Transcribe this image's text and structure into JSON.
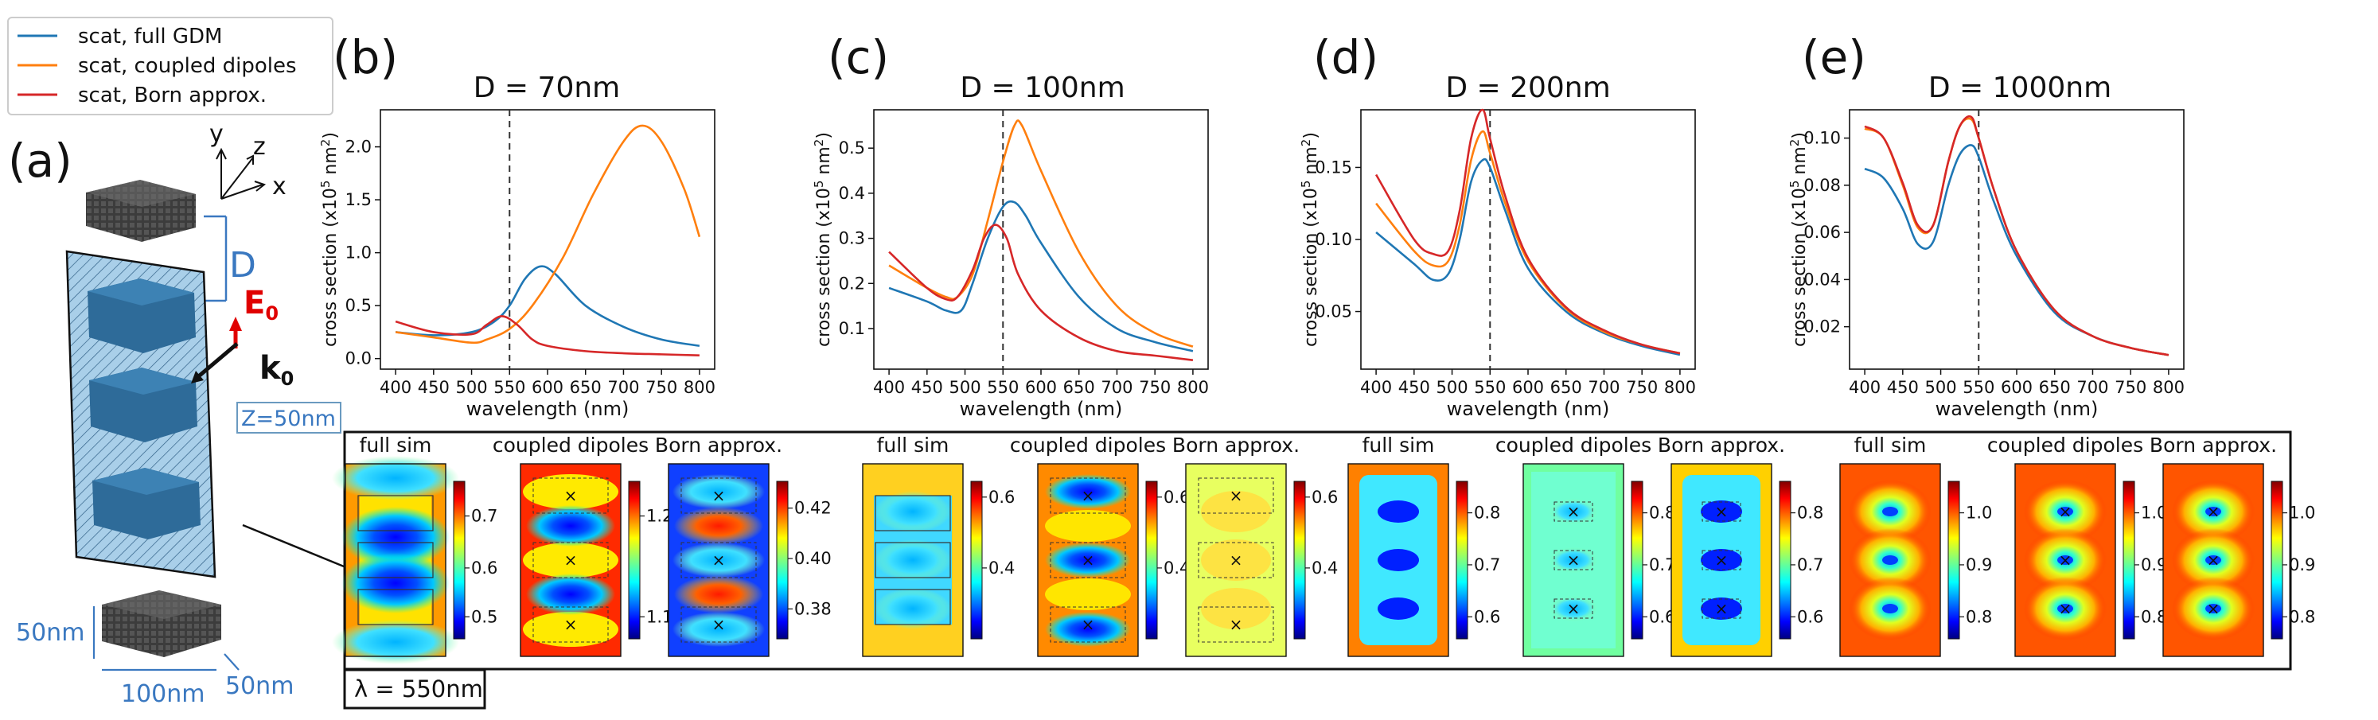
{
  "legend": {
    "entries": [
      {
        "label": "scat, full GDM",
        "color": "#1f77b4"
      },
      {
        "label": "scat, coupled dipoles",
        "color": "#ff7f0e"
      },
      {
        "label": "scat, Born approx.",
        "color": "#d62728"
      }
    ]
  },
  "schematic": {
    "panel_label": "(a)",
    "axes": {
      "x": "x",
      "y": "y",
      "z": "z"
    },
    "D_label": "D",
    "E_label": "E",
    "E_sub": "0",
    "k_label": "k",
    "k_sub": "0",
    "z_label": "Z=50nm",
    "dims": {
      "height": "50nm",
      "width": "100nm",
      "depth": "50nm"
    }
  },
  "chart_data": [
    {
      "type": "line",
      "panel": "(b)",
      "title": "D = 70nm",
      "xlabel": "wavelength (nm)",
      "ylabel_main": "cross section (x10",
      "ylabel_sup1": "5",
      "ylabel_mid": " nm",
      "ylabel_sup2": "2",
      "ylabel_end": ")",
      "xlim": [
        380,
        820
      ],
      "ylim": [
        -0.1,
        2.35
      ],
      "xticks": [
        400,
        450,
        500,
        550,
        600,
        650,
        700,
        750,
        800
      ],
      "xtick_labels": [
        "400",
        "450",
        "500",
        "550",
        "600",
        "650",
        "700",
        "750",
        "800"
      ],
      "yticks": [
        0,
        0.5,
        1.0,
        1.5,
        2.0
      ],
      "ytick_labels": [
        "0.0",
        "0.5",
        "1.0",
        "1.5",
        "2.0"
      ],
      "vline": 550,
      "series": [
        {
          "name": "scat, full GDM",
          "color": "#1f77b4",
          "x": [
            400,
            450,
            500,
            530,
            550,
            570,
            590,
            610,
            650,
            700,
            750,
            800
          ],
          "y": [
            0.25,
            0.22,
            0.25,
            0.35,
            0.5,
            0.75,
            0.87,
            0.8,
            0.5,
            0.3,
            0.18,
            0.12
          ]
        },
        {
          "name": "scat, coupled dipoles",
          "color": "#ff7f0e",
          "x": [
            400,
            450,
            500,
            520,
            550,
            580,
            620,
            660,
            700,
            725,
            750,
            780,
            800
          ],
          "y": [
            0.25,
            0.2,
            0.15,
            0.18,
            0.28,
            0.5,
            0.95,
            1.55,
            2.05,
            2.2,
            2.05,
            1.6,
            1.15
          ]
        },
        {
          "name": "scat, Born approx.",
          "color": "#d62728",
          "x": [
            400,
            450,
            500,
            520,
            540,
            560,
            580,
            600,
            650,
            700,
            750,
            800
          ],
          "y": [
            0.35,
            0.25,
            0.23,
            0.32,
            0.4,
            0.32,
            0.18,
            0.12,
            0.07,
            0.05,
            0.04,
            0.03
          ]
        }
      ]
    },
    {
      "type": "line",
      "panel": "(c)",
      "title": "D = 100nm",
      "xlabel": "wavelength (nm)",
      "ylabel_main": "cross section (x10",
      "ylabel_sup1": "5",
      "ylabel_mid": " nm",
      "ylabel_sup2": "2",
      "ylabel_end": ")",
      "xlim": [
        380,
        820
      ],
      "ylim": [
        0.01,
        0.585
      ],
      "xticks": [
        400,
        450,
        500,
        550,
        600,
        650,
        700,
        750,
        800
      ],
      "xtick_labels": [
        "400",
        "450",
        "500",
        "550",
        "600",
        "650",
        "700",
        "750",
        "800"
      ],
      "yticks": [
        0.1,
        0.2,
        0.3,
        0.4,
        0.5
      ],
      "ytick_labels": [
        "0.1",
        "0.2",
        "0.3",
        "0.4",
        "0.5"
      ],
      "vline": 550,
      "series": [
        {
          "name": "scat, full GDM",
          "color": "#1f77b4",
          "x": [
            400,
            450,
            475,
            495,
            510,
            530,
            550,
            565,
            580,
            600,
            650,
            700,
            750,
            800
          ],
          "y": [
            0.19,
            0.16,
            0.14,
            0.14,
            0.2,
            0.3,
            0.37,
            0.38,
            0.35,
            0.29,
            0.17,
            0.1,
            0.07,
            0.05
          ]
        },
        {
          "name": "scat, coupled dipoles",
          "color": "#ff7f0e",
          "x": [
            400,
            450,
            475,
            490,
            510,
            530,
            550,
            565,
            575,
            600,
            650,
            700,
            750,
            800
          ],
          "y": [
            0.24,
            0.19,
            0.17,
            0.17,
            0.22,
            0.34,
            0.47,
            0.55,
            0.55,
            0.45,
            0.27,
            0.15,
            0.09,
            0.06
          ]
        },
        {
          "name": "scat, Born approx.",
          "color": "#d62728",
          "x": [
            400,
            450,
            475,
            490,
            510,
            525,
            540,
            555,
            570,
            600,
            650,
            700,
            750,
            800
          ],
          "y": [
            0.27,
            0.19,
            0.165,
            0.17,
            0.23,
            0.3,
            0.33,
            0.3,
            0.22,
            0.14,
            0.08,
            0.05,
            0.04,
            0.03
          ]
        }
      ]
    },
    {
      "type": "line",
      "panel": "(d)",
      "title": "D = 200nm",
      "xlabel": "wavelength (nm)",
      "ylabel_main": "cross section (x10",
      "ylabel_sup1": "5",
      "ylabel_mid": " nm",
      "ylabel_sup2": "2",
      "ylabel_end": ")",
      "xlim": [
        380,
        820
      ],
      "ylim": [
        0.01,
        0.19
      ],
      "xticks": [
        400,
        450,
        500,
        550,
        600,
        650,
        700,
        750,
        800
      ],
      "xtick_labels": [
        "400",
        "450",
        "500",
        "550",
        "600",
        "650",
        "700",
        "750",
        "800"
      ],
      "yticks": [
        0.05,
        0.1,
        0.15
      ],
      "ytick_labels": [
        "0.05",
        "0.10",
        "0.15"
      ],
      "vline": 550,
      "series": [
        {
          "name": "scat, full GDM",
          "color": "#1f77b4",
          "x": [
            400,
            450,
            475,
            495,
            510,
            525,
            540,
            550,
            570,
            600,
            650,
            700,
            750,
            800
          ],
          "y": [
            0.105,
            0.083,
            0.072,
            0.076,
            0.1,
            0.14,
            0.155,
            0.15,
            0.12,
            0.08,
            0.05,
            0.035,
            0.026,
            0.02
          ]
        },
        {
          "name": "scat, coupled dipoles",
          "color": "#ff7f0e",
          "x": [
            400,
            450,
            475,
            495,
            510,
            525,
            540,
            550,
            570,
            600,
            650,
            700,
            750,
            800
          ],
          "y": [
            0.125,
            0.092,
            0.082,
            0.085,
            0.11,
            0.155,
            0.175,
            0.16,
            0.125,
            0.085,
            0.052,
            0.036,
            0.027,
            0.021
          ]
        },
        {
          "name": "scat, Born approx.",
          "color": "#d62728",
          "x": [
            400,
            450,
            475,
            495,
            510,
            525,
            540,
            550,
            570,
            600,
            650,
            700,
            750,
            800
          ],
          "y": [
            0.145,
            0.1,
            0.09,
            0.092,
            0.12,
            0.17,
            0.19,
            0.17,
            0.13,
            0.087,
            0.053,
            0.037,
            0.027,
            0.021
          ]
        }
      ]
    },
    {
      "type": "line",
      "panel": "(e)",
      "title": "D = 1000nm",
      "xlabel": "wavelength (nm)",
      "ylabel_main": "cross section (x10",
      "ylabel_sup1": "5",
      "ylabel_mid": " nm",
      "ylabel_sup2": "2",
      "ylabel_end": ")",
      "xlim": [
        380,
        820
      ],
      "ylim": [
        0.002,
        0.112
      ],
      "xticks": [
        400,
        450,
        500,
        550,
        600,
        650,
        700,
        750,
        800
      ],
      "xtick_labels": [
        "400",
        "450",
        "500",
        "550",
        "600",
        "650",
        "700",
        "750",
        "800"
      ],
      "yticks": [
        0.02,
        0.04,
        0.06,
        0.08,
        0.1
      ],
      "ytick_labels": [
        "0.02",
        "0.04",
        "0.06",
        "0.08",
        "0.10"
      ],
      "vline": 550,
      "series": [
        {
          "name": "scat, full GDM",
          "color": "#1f77b4",
          "x": [
            400,
            425,
            450,
            470,
            490,
            510,
            525,
            540,
            550,
            570,
            600,
            650,
            700,
            750,
            800
          ],
          "y": [
            0.087,
            0.083,
            0.07,
            0.055,
            0.056,
            0.08,
            0.093,
            0.097,
            0.092,
            0.073,
            0.05,
            0.026,
            0.016,
            0.011,
            0.008
          ]
        },
        {
          "name": "scat, coupled dipoles",
          "color": "#ff7f0e",
          "x": [
            400,
            425,
            450,
            470,
            490,
            510,
            525,
            540,
            550,
            570,
            600,
            650,
            700,
            750,
            800
          ],
          "y": [
            0.104,
            0.1,
            0.08,
            0.062,
            0.063,
            0.09,
            0.105,
            0.108,
            0.1,
            0.078,
            0.052,
            0.027,
            0.016,
            0.011,
            0.008
          ]
        },
        {
          "name": "scat, Born approx.",
          "color": "#d62728",
          "x": [
            400,
            425,
            450,
            470,
            490,
            510,
            525,
            540,
            550,
            570,
            600,
            650,
            700,
            750,
            800
          ],
          "y": [
            0.105,
            0.1,
            0.081,
            0.063,
            0.063,
            0.09,
            0.105,
            0.109,
            0.1,
            0.078,
            0.052,
            0.027,
            0.016,
            0.011,
            0.008
          ]
        }
      ]
    }
  ],
  "maps": {
    "groups": [
      {
        "panels": [
          {
            "label": "full sim",
            "style": "b-full",
            "markers": false,
            "ticks": [
              "0.7",
              "0.6",
              "0.5"
            ],
            "tick_fracs": [
              0.22,
              0.55,
              0.86
            ]
          },
          {
            "label": "coupled dipoles",
            "style": "b-cd",
            "markers": true,
            "ticks": [
              "1.2",
              "1.1"
            ],
            "tick_fracs": [
              0.22,
              0.86
            ]
          },
          {
            "label": "Born approx.",
            "style": "b-born",
            "markers": true,
            "ticks": [
              "0.42",
              "0.40",
              "0.38"
            ],
            "tick_fracs": [
              0.17,
              0.49,
              0.81
            ]
          }
        ]
      },
      {
        "panels": [
          {
            "label": "full sim",
            "style": "c-full",
            "markers": false,
            "ticks": [
              "0.6",
              "0.4"
            ],
            "tick_fracs": [
              0.1,
              0.55
            ]
          },
          {
            "label": "coupled dipoles",
            "style": "c-cd",
            "markers": true,
            "ticks": [
              "0.6",
              "0.4"
            ],
            "tick_fracs": [
              0.1,
              0.55
            ]
          },
          {
            "label": "Born approx.",
            "style": "c-born",
            "markers": true,
            "ticks": [
              "0.6",
              "0.4"
            ],
            "tick_fracs": [
              0.1,
              0.55
            ]
          }
        ]
      },
      {
        "panels": [
          {
            "label": "full sim",
            "style": "d-full",
            "markers": false,
            "ticks": [
              "0.8",
              "0.7",
              "0.6"
            ],
            "tick_fracs": [
              0.2,
              0.53,
              0.86
            ]
          },
          {
            "label": "coupled dipoles",
            "style": "d-cd",
            "markers": true,
            "ticks": [
              "0.8",
              "0.7",
              "0.6"
            ],
            "tick_fracs": [
              0.2,
              0.53,
              0.86
            ]
          },
          {
            "label": "Born approx.",
            "style": "d-born",
            "markers": true,
            "ticks": [
              "0.8",
              "0.7",
              "0.6"
            ],
            "tick_fracs": [
              0.2,
              0.53,
              0.86
            ]
          }
        ]
      },
      {
        "panels": [
          {
            "label": "full sim",
            "style": "e",
            "markers": false,
            "ticks": [
              "1.0",
              "0.9",
              "0.8"
            ],
            "tick_fracs": [
              0.2,
              0.53,
              0.86
            ]
          },
          {
            "label": "coupled dipoles",
            "style": "e",
            "markers": true,
            "ticks": [
              "1.0",
              "0.9",
              "0.8"
            ],
            "tick_fracs": [
              0.2,
              0.53,
              0.86
            ]
          },
          {
            "label": "Born approx.",
            "style": "e",
            "markers": true,
            "ticks": [
              "1.0",
              "0.9",
              "0.8"
            ],
            "tick_fracs": [
              0.2,
              0.53,
              0.86
            ]
          }
        ]
      }
    ],
    "wavelength_label": "λ = 550nm",
    "marker_glyph": "×"
  }
}
